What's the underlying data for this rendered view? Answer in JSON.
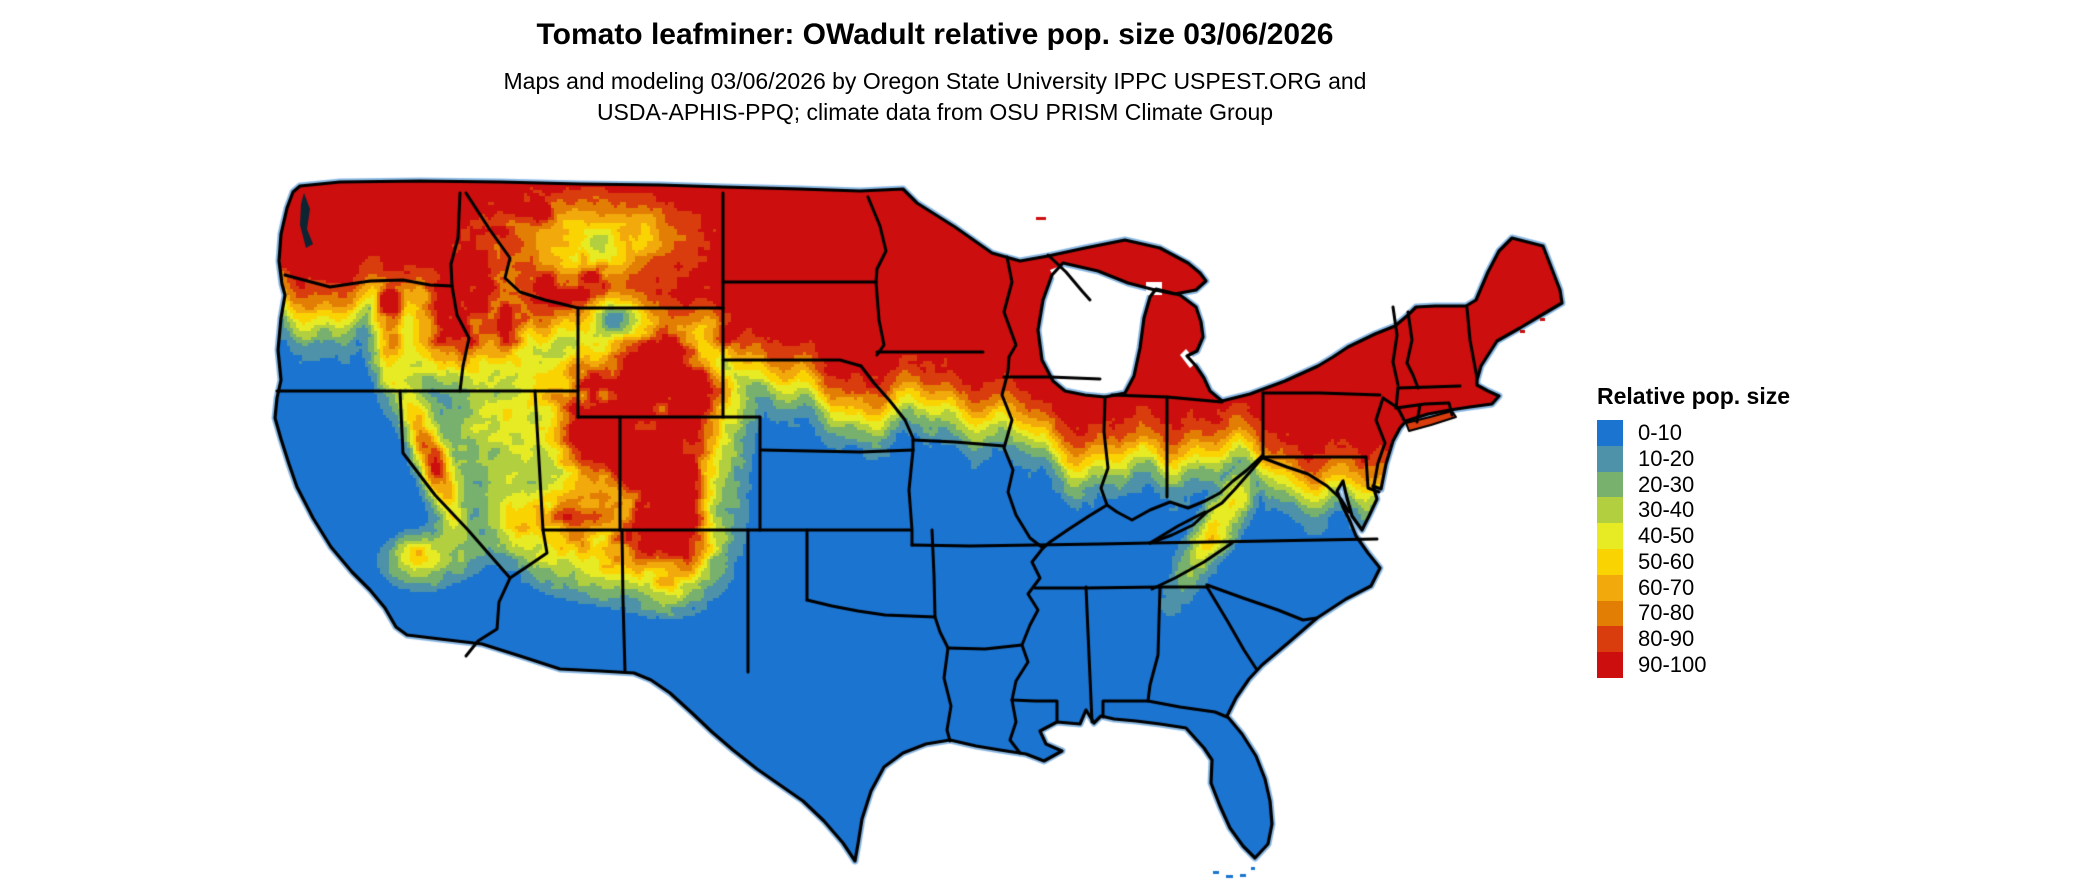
{
  "header": {
    "title": "Tomato leafminer: OWadult relative pop. size 03/06/2026",
    "subtitle_line1": "Maps and modeling 03/06/2026 by Oregon State University IPPC USPEST.ORG and",
    "subtitle_line2": "USDA-APHIS-PPQ; climate data from OSU PRISM Climate Group"
  },
  "legend": {
    "title": "Relative pop. size",
    "items": [
      {
        "label": "0-10",
        "color": "#1B74D0"
      },
      {
        "label": "10-20",
        "color": "#4D92A8"
      },
      {
        "label": "20-30",
        "color": "#77B16D"
      },
      {
        "label": "30-40",
        "color": "#B2CF40"
      },
      {
        "label": "40-50",
        "color": "#E7EB24"
      },
      {
        "label": "50-60",
        "color": "#FAD303"
      },
      {
        "label": "60-70",
        "color": "#F2A90C"
      },
      {
        "label": "70-80",
        "color": "#E37E04"
      },
      {
        "label": "80-90",
        "color": "#DA3D0D"
      },
      {
        "label": "90-100",
        "color": "#CC0E0E"
      }
    ]
  },
  "map": {
    "region": "contiguous United States",
    "type": "classified raster choropleth of relative population size",
    "high_value_areas": "northern tier (MN, WI, MI, ND, New England, NY, PA) and western mountains (E WA/OR, ID, MT, WY, UT, CO, Sierra Nevada, Appalachian ridges)",
    "low_value_areas": "southern half (CA valleys, AZ/NM lowlands, TX, Gulf states, Southeast, FL)",
    "border_color": "#000000",
    "coast_fringe_color": "#8FBCE6",
    "water_color": "#ffffff",
    "puget_sound_color": "#0d2433"
  }
}
